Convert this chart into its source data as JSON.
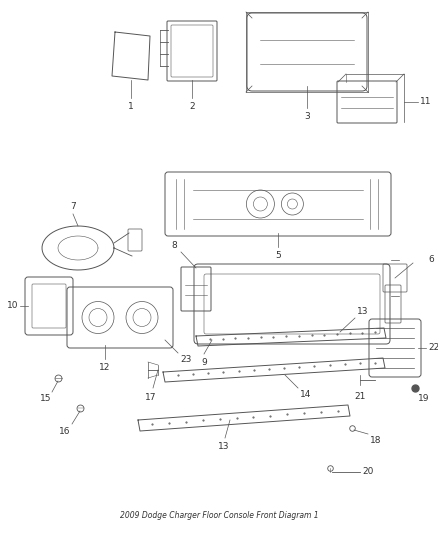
{
  "title": "2009 Dodge Charger Floor Console Front Diagram 1",
  "background": "#ffffff",
  "line_color": "#555555",
  "text_color": "#333333",
  "font_size": 6.5,
  "figsize": [
    4.38,
    5.33
  ],
  "dpi": 100
}
